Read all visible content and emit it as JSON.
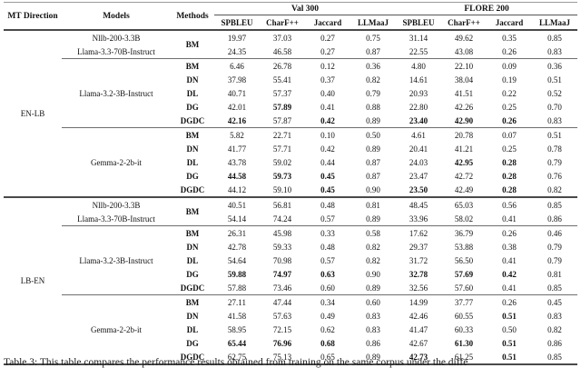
{
  "page": {
    "caption": "Table 3: This table compares the performance results obtained from training on the same corpus under the diffe"
  },
  "table": {
    "header": {
      "mt_direction": "MT Direction",
      "models": "Models",
      "methods": "Methods",
      "group1": "Val 300",
      "group2": "FLORE 200",
      "metrics": [
        "SPBLEU",
        "CharF++",
        "Jaccard",
        "LLMaaJ",
        "SPBLEU",
        "CharF++",
        "Jaccard",
        "LLMaaJ"
      ]
    },
    "rows": [
      {
        "direction": "EN-LB",
        "direction_rowspan": 12,
        "model": "Nllb-200-3.3B",
        "method": "BM",
        "method_rowspan": 2,
        "values": [
          "19.97",
          "37.03",
          "0.27",
          "0.75",
          "31.14",
          "49.62",
          "0.35",
          "0.85"
        ],
        "bold": []
      },
      {
        "model": "Llama-3.3-70B-Instruct",
        "values": [
          "24.35",
          "46.58",
          "0.27",
          "0.87",
          "22.55",
          "43.08",
          "0.26",
          "0.83"
        ],
        "bold": []
      },
      {
        "rule": "group",
        "model": "Llama-3.2-3B-Instruct",
        "model_rowspan": 5,
        "method": "BM",
        "values": [
          "6.46",
          "26.78",
          "0.12",
          "0.36",
          "4.80",
          "22.10",
          "0.09",
          "0.36"
        ],
        "bold": []
      },
      {
        "method": "DN",
        "values": [
          "37.98",
          "55.41",
          "0.37",
          "0.82",
          "14.61",
          "38.04",
          "0.19",
          "0.51"
        ],
        "bold": []
      },
      {
        "method": "DL",
        "values": [
          "40.71",
          "57.37",
          "0.40",
          "0.79",
          "20.93",
          "41.51",
          "0.22",
          "0.52"
        ],
        "bold": []
      },
      {
        "method": "DG",
        "values": [
          "42.01",
          "57.89",
          "0.41",
          "0.88",
          "22.80",
          "42.26",
          "0.25",
          "0.70"
        ],
        "bold": [
          1
        ]
      },
      {
        "method": "DGDC",
        "values": [
          "42.16",
          "57.87",
          "0.42",
          "0.89",
          "23.40",
          "42.90",
          "0.26",
          "0.83"
        ],
        "bold": [
          0,
          2,
          4,
          5,
          6
        ]
      },
      {
        "rule": "group",
        "model": "Gemma-2-2b-it",
        "model_rowspan": 5,
        "method": "BM",
        "values": [
          "5.82",
          "22.71",
          "0.10",
          "0.50",
          "4.61",
          "20.78",
          "0.07",
          "0.51"
        ],
        "bold": []
      },
      {
        "method": "DN",
        "values": [
          "41.77",
          "57.71",
          "0.42",
          "0.89",
          "20.41",
          "41.21",
          "0.25",
          "0.78"
        ],
        "bold": []
      },
      {
        "method": "DL",
        "values": [
          "43.78",
          "59.02",
          "0.44",
          "0.87",
          "24.03",
          "42.95",
          "0.28",
          "0.79"
        ],
        "bold": [
          5,
          6
        ]
      },
      {
        "method": "DG",
        "values": [
          "44.58",
          "59.73",
          "0.45",
          "0.87",
          "23.47",
          "42.72",
          "0.28",
          "0.76"
        ],
        "bold": [
          0,
          1,
          2,
          6
        ]
      },
      {
        "method": "DGDC",
        "values": [
          "44.12",
          "59.10",
          "0.45",
          "0.90",
          "23.50",
          "42.49",
          "0.28",
          "0.82"
        ],
        "bold": [
          2,
          4,
          6
        ]
      },
      {
        "rule": "section",
        "direction": "LB-EN",
        "direction_rowspan": 12,
        "model": "Nllb-200-3.3B",
        "method": "BM",
        "method_rowspan": 2,
        "values": [
          "40.51",
          "56.81",
          "0.48",
          "0.81",
          "48.45",
          "65.03",
          "0.56",
          "0.85"
        ],
        "bold": []
      },
      {
        "model": "Llama-3.3-70B-Instruct",
        "values": [
          "54.14",
          "74.24",
          "0.57",
          "0.89",
          "33.96",
          "58.02",
          "0.41",
          "0.86"
        ],
        "bold": []
      },
      {
        "rule": "group",
        "model": "Llama-3.2-3B-Instruct",
        "model_rowspan": 5,
        "method": "BM",
        "values": [
          "26.31",
          "45.98",
          "0.33",
          "0.58",
          "17.62",
          "36.79",
          "0.26",
          "0.46"
        ],
        "bold": []
      },
      {
        "method": "DN",
        "values": [
          "42.78",
          "59.33",
          "0.48",
          "0.82",
          "29.37",
          "53.88",
          "0.38",
          "0.79"
        ],
        "bold": []
      },
      {
        "method": "DL",
        "values": [
          "54.64",
          "70.98",
          "0.57",
          "0.82",
          "31.72",
          "56.50",
          "0.41",
          "0.79"
        ],
        "bold": []
      },
      {
        "method": "DG",
        "values": [
          "59.88",
          "74.97",
          "0.63",
          "0.90",
          "32.78",
          "57.69",
          "0.42",
          "0.81"
        ],
        "bold": [
          0,
          1,
          2,
          4,
          5,
          6
        ]
      },
      {
        "method": "DGDC",
        "values": [
          "57.88",
          "73.46",
          "0.60",
          "0.89",
          "32.56",
          "57.60",
          "0.41",
          "0.85"
        ],
        "bold": []
      },
      {
        "rule": "group",
        "model": "Gemma-2-2b-it",
        "model_rowspan": 5,
        "method": "BM",
        "values": [
          "27.11",
          "47.44",
          "0.34",
          "0.60",
          "14.99",
          "37.77",
          "0.26",
          "0.45"
        ],
        "bold": []
      },
      {
        "method": "DN",
        "values": [
          "41.58",
          "57.63",
          "0.49",
          "0.83",
          "42.46",
          "60.55",
          "0.51",
          "0.83"
        ],
        "bold": [
          6
        ]
      },
      {
        "method": "DL",
        "values": [
          "58.95",
          "72.15",
          "0.62",
          "0.83",
          "41.47",
          "60.33",
          "0.50",
          "0.82"
        ],
        "bold": []
      },
      {
        "method": "DG",
        "values": [
          "65.44",
          "76.96",
          "0.68",
          "0.86",
          "42.67",
          "61.30",
          "0.51",
          "0.86"
        ],
        "bold": [
          0,
          1,
          2,
          5,
          6
        ]
      },
      {
        "method": "DGDC",
        "values": [
          "62.75",
          "75.13",
          "0.65",
          "0.89",
          "42.73",
          "61.25",
          "0.51",
          "0.85"
        ],
        "bold": [
          4,
          6
        ]
      }
    ]
  }
}
